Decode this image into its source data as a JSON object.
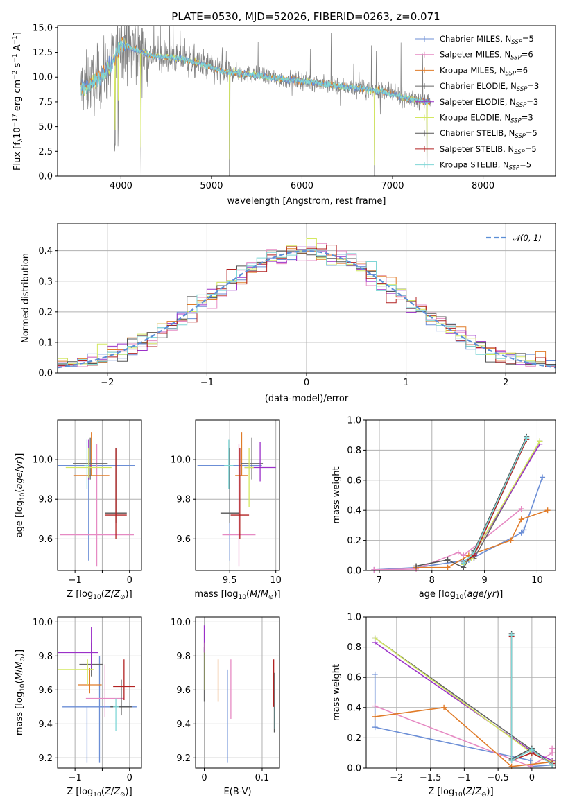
{
  "figure": {
    "title": "PLATE=0530, MJD=52026, FIBERID=0263, z=0.071"
  },
  "colors": {
    "Chabrier MILES": "#6b8ed6",
    "Salpeter MILES": "#e68ac3",
    "Kroupa MILES": "#e07b28",
    "Chabrier ELODIE": "#666666",
    "Salpeter ELODIE": "#9b30c8",
    "Kroupa ELODIE": "#d4e860",
    "Chabrier STELIB": "#555555",
    "Salpeter STELIB": "#b22222",
    "Kroupa STELIB": "#7fd6d6",
    "data": "#808080",
    "normal": "#5b8ed6"
  },
  "chart_data": [
    {
      "id": "spectrum",
      "type": "line",
      "title": "PLATE=0530, MJD=52026, FIBERID=0263, z=0.071",
      "xlabel": "wavelength [Angstrom, rest frame]",
      "ylabel": "Flux [f_λ 10^-17 erg cm^-2 s^-1 A^-1]",
      "xlim": [
        3300,
        8800
      ],
      "ylim": [
        0,
        15.2
      ],
      "xticks": [
        4000,
        5000,
        6000,
        7000,
        8000
      ],
      "yticks": [
        0.0,
        2.5,
        5.0,
        7.5,
        10.0,
        12.5,
        15.0
      ],
      "legend_position": "top-right",
      "legend": [
        {
          "name": "Chabrier MILES",
          "nssp": "5"
        },
        {
          "name": "Salpeter MILES",
          "nssp": "6"
        },
        {
          "name": "Kroupa MILES",
          "nssp": "6"
        },
        {
          "name": "Chabrier ELODIE",
          "nssp": "3"
        },
        {
          "name": "Salpeter ELODIE",
          "nssp": "3"
        },
        {
          "name": "Kroupa ELODIE",
          "nssp": "3"
        },
        {
          "name": "Chabrier STELIB",
          "nssp": "5"
        },
        {
          "name": "Salpeter STELIB",
          "nssp": "5"
        },
        {
          "name": "Kroupa STELIB",
          "nssp": "5"
        }
      ],
      "continuum": {
        "x": [
          3550,
          3700,
          3900,
          4000,
          4100,
          4300,
          4500,
          4700,
          4900,
          5100,
          5300,
          5500,
          5700,
          5900,
          6100,
          6300,
          6500,
          6700,
          6900,
          7100,
          7300,
          7400
        ],
        "y": [
          9.0,
          9.5,
          11.2,
          13.5,
          13.0,
          12.2,
          12.0,
          11.8,
          11.3,
          10.6,
          10.4,
          10.2,
          9.9,
          9.7,
          9.5,
          9.2,
          9.0,
          8.8,
          8.5,
          8.0,
          7.6,
          7.5
        ]
      },
      "absorption_features": [
        {
          "x": 3934,
          "depth": 9.5
        },
        {
          "x": 3969,
          "depth": 7.0
        },
        {
          "x": 4220,
          "depth": 12.0
        },
        {
          "x": 5200,
          "depth": 11.0
        },
        {
          "x": 6800,
          "depth": 9.5
        },
        {
          "x": 7380,
          "depth": 7.0
        }
      ],
      "data_range": [
        3550,
        7420
      ]
    },
    {
      "id": "residuals",
      "type": "bar",
      "xlabel": "(data-model)/error",
      "ylabel": "Normed distribution",
      "xlim": [
        -2.5,
        2.5
      ],
      "ylim": [
        0,
        0.49
      ],
      "xticks": [
        -2,
        -1,
        0,
        1,
        2
      ],
      "yticks": [
        0.0,
        0.1,
        0.2,
        0.3,
        0.4
      ],
      "legend": [
        "𝒩(0, 1)"
      ],
      "legend_position": "top-right",
      "bin_width": 0.1,
      "bin_start": -2.5,
      "bin_count": 50
    },
    {
      "id": "age_vs_Z",
      "type": "scatter",
      "xlabel": "Z [log10(Z/Z⊙)]",
      "ylabel": "age  [log10(age/yr)]",
      "xlim": [
        -1.32,
        0.22
      ],
      "ylim": [
        9.44,
        10.2
      ],
      "xticks": [
        -1,
        -0.5,
        0
      ],
      "xticklabels": [
        "−1",
        "",
        "0"
      ],
      "yticks": [
        9.6,
        9.8,
        10.0
      ],
      "points": [
        {
          "model": "Chabrier MILES",
          "x": -0.75,
          "xerr": 0.85,
          "y": 9.97,
          "yerr": [
            0.48,
            0.0
          ]
        },
        {
          "model": "Salpeter MILES",
          "x": -0.6,
          "xerr": 0.68,
          "y": 9.62,
          "yerr": [
            0.16,
            0.46
          ]
        },
        {
          "model": "Kroupa MILES",
          "x": -0.7,
          "xerr": 0.33,
          "y": 9.92,
          "yerr": [
            0.0,
            0.22
          ]
        },
        {
          "model": "Chabrier ELODIE",
          "x": -0.72,
          "xerr": 0.32,
          "y": 9.98,
          "yerr": [
            0.08,
            0.13
          ]
        },
        {
          "model": "Salpeter ELODIE",
          "x": -0.75,
          "xerr": 0.05,
          "y": 9.97,
          "yerr": [
            0.07,
            0.13
          ]
        },
        {
          "model": "Kroupa ELODIE",
          "x": -0.75,
          "xerr": 0.42,
          "y": 9.96,
          "yerr": [
            0.05,
            0.1
          ]
        },
        {
          "model": "Chabrier STELIB",
          "x": -0.25,
          "xerr": 0.2,
          "y": 9.73,
          "yerr": [
            0.05,
            0.33
          ]
        },
        {
          "model": "Salpeter STELIB",
          "x": -0.25,
          "xerr": 0.2,
          "y": 9.72,
          "yerr": [
            0.12,
            0.34
          ]
        },
        {
          "model": "Kroupa STELIB",
          "x": -0.78,
          "xerr": 0.05,
          "y": 9.97,
          "yerr": [
            0.12,
            0.13
          ]
        }
      ]
    },
    {
      "id": "age_vs_mass",
      "type": "scatter",
      "xlabel": "mass [log10(M/M⊙)]",
      "ylabel": "",
      "xlim": [
        9.13,
        10.04
      ],
      "ylim": [
        9.44,
        10.2
      ],
      "xticks": [
        9.5,
        10.0
      ],
      "yticks": [
        9.6,
        9.8,
        10.0
      ],
      "points": [
        {
          "model": "Chabrier MILES",
          "x": 9.5,
          "xerr": 0.35,
          "y": 9.97,
          "yerr": [
            0.48,
            0.0
          ]
        },
        {
          "model": "Salpeter MILES",
          "x": 9.6,
          "xerr": 0.18,
          "y": 9.62,
          "yerr": [
            0.16,
            0.46
          ]
        },
        {
          "model": "Kroupa MILES",
          "x": 9.63,
          "xerr": 0.07,
          "y": 9.92,
          "yerr": [
            0.0,
            0.22
          ]
        },
        {
          "model": "Chabrier ELODIE",
          "x": 9.74,
          "xerr": 0.12,
          "y": 9.98,
          "yerr": [
            0.08,
            0.13
          ]
        },
        {
          "model": "Salpeter ELODIE",
          "x": 9.83,
          "xerr": 0.17,
          "y": 9.96,
          "yerr": [
            0.07,
            0.13
          ]
        },
        {
          "model": "Kroupa ELODIE",
          "x": 9.71,
          "xerr": 0.05,
          "y": 9.96,
          "yerr": [
            0.2,
            0.1
          ]
        },
        {
          "model": "Chabrier STELIB",
          "x": 9.5,
          "xerr": 0.1,
          "y": 9.73,
          "yerr": [
            0.05,
            0.33
          ]
        },
        {
          "model": "Salpeter STELIB",
          "x": 9.61,
          "xerr": 0.1,
          "y": 9.72,
          "yerr": [
            0.12,
            0.34
          ]
        },
        {
          "model": "Kroupa STELIB",
          "x": 9.49,
          "xerr": 0.05,
          "y": 9.97,
          "yerr": [
            0.12,
            0.13
          ]
        }
      ]
    },
    {
      "id": "massweight_vs_age",
      "type": "line",
      "xlabel": "age  [log10(age/yr)]",
      "ylabel": "mass weight",
      "xlim": [
        6.75,
        10.35
      ],
      "ylim": [
        0,
        1.0
      ],
      "xticks": [
        7,
        8,
        9,
        10
      ],
      "yticks": [
        0.0,
        0.2,
        0.4,
        0.6,
        0.8,
        1.0
      ],
      "series": [
        {
          "model": "Chabrier MILES",
          "x": [
            6.9,
            7.7,
            8.7,
            9.7,
            9.75,
            10.1
          ],
          "y": [
            0.005,
            0.02,
            0.07,
            0.25,
            0.27,
            0.62
          ]
        },
        {
          "model": "Salpeter MILES",
          "x": [
            6.9,
            7.7,
            8.5,
            8.6,
            9.7
          ],
          "y": [
            0.005,
            0.01,
            0.12,
            0.1,
            0.41
          ]
        },
        {
          "model": "Kroupa MILES",
          "x": [
            7.7,
            8.3,
            8.7,
            9.5,
            9.7,
            10.2
          ],
          "y": [
            0.02,
            0.02,
            0.1,
            0.2,
            0.34,
            0.4
          ]
        },
        {
          "model": "Chabrier ELODIE",
          "x": [
            8.6,
            8.8,
            10.05
          ],
          "y": [
            0.06,
            0.08,
            0.86
          ]
        },
        {
          "model": "Salpeter ELODIE",
          "x": [
            8.6,
            8.8,
            10.05
          ],
          "y": [
            0.05,
            0.11,
            0.84
          ]
        },
        {
          "model": "Kroupa ELODIE",
          "x": [
            8.6,
            8.75,
            10.05
          ],
          "y": [
            0.04,
            0.08,
            0.86
          ]
        },
        {
          "model": "Chabrier STELIB",
          "x": [
            7.7,
            8.3,
            8.6,
            8.8,
            9.8
          ],
          "y": [
            0.03,
            0.07,
            0.02,
            0.13,
            0.89
          ]
        },
        {
          "model": "Salpeter STELIB",
          "x": [
            8.6,
            8.8,
            9.8
          ],
          "y": [
            0.05,
            0.1,
            0.87
          ]
        },
        {
          "model": "Kroupa STELIB",
          "x": [
            8.6,
            8.8,
            9.8
          ],
          "y": [
            0.05,
            0.12,
            0.88
          ]
        }
      ]
    },
    {
      "id": "mass_vs_Z",
      "type": "scatter",
      "xlabel": "Z [log10(Z/Z⊙)]",
      "ylabel": "mass [log10(M/M⊙)]",
      "xlim": [
        -1.32,
        0.22
      ],
      "ylim": [
        9.14,
        10.03
      ],
      "xticks": [
        -1,
        -0.5,
        0
      ],
      "xticklabels": [
        "−1",
        "",
        "0"
      ],
      "yticks": [
        9.2,
        9.4,
        9.6,
        9.8,
        10.0
      ],
      "points": [
        {
          "model": "Chabrier MILES",
          "x": -0.55,
          "xerr": 0.68,
          "y": 9.5,
          "yerr": [
            0.33,
            0.3
          ]
        },
        {
          "model": "Salpeter MILES",
          "x": -0.45,
          "xerr": 0.35,
          "y": 9.55,
          "yerr": [
            0.11,
            0.2
          ]
        },
        {
          "model": "Kroupa MILES",
          "x": -0.73,
          "xerr": 0.22,
          "y": 9.63,
          "yerr": [
            0.05,
            0.1
          ]
        },
        {
          "model": "Chabrier ELODIE",
          "x": -0.7,
          "xerr": 0.22,
          "y": 9.75,
          "yerr": [
            0.07,
            0.13
          ]
        },
        {
          "model": "Salpeter ELODIE",
          "x": -0.95,
          "xerr": 0.37,
          "y": 9.82,
          "yerr": [
            0.0,
            0.0
          ]
        },
        {
          "model": "Kroupa ELODIE",
          "x": -1.0,
          "xerr": 0.35,
          "y": 9.72,
          "yerr": [
            0.0,
            0.0
          ]
        },
        {
          "model": "Chabrier STELIB",
          "x": -0.15,
          "xerr": 0.2,
          "y": 9.5,
          "yerr": [
            0.05,
            0.16
          ]
        },
        {
          "model": "Salpeter STELIB",
          "x": -0.1,
          "xerr": 0.2,
          "y": 9.62,
          "yerr": [
            0.08,
            0.16
          ]
        },
        {
          "model": "Kroupa STELIB",
          "x": -0.25,
          "xerr": 0.05,
          "y": 9.5,
          "yerr": [
            0.14,
            0.05
          ]
        }
      ],
      "vertical_segments": [
        {
          "model": "Salpeter ELODIE",
          "x": -0.7,
          "y0": 9.73,
          "y1": 9.97
        },
        {
          "model": "Kroupa ELODIE",
          "x": -0.77,
          "y0": 9.63,
          "y1": 9.78
        },
        {
          "model": "Chabrier MILES",
          "x": -0.78,
          "y0": 9.17,
          "y1": 9.5
        }
      ]
    },
    {
      "id": "mass_vs_EBV",
      "type": "scatter",
      "xlabel": "E(B-V)",
      "ylabel": "",
      "xlim": [
        -0.015,
        0.13
      ],
      "ylim": [
        9.14,
        10.03
      ],
      "xticks": [
        0.0,
        0.1
      ],
      "yticks": [
        9.2,
        9.4,
        9.6,
        9.8,
        10.0
      ],
      "points": [
        {
          "model": "Chabrier MILES",
          "x": 0.04,
          "y0": 9.17,
          "y1": 9.72
        },
        {
          "model": "Salpeter MILES",
          "x": 0.046,
          "y0": 9.43,
          "y1": 9.78
        },
        {
          "model": "Kroupa MILES",
          "x": 0.024,
          "y0": 9.53,
          "y1": 9.78
        },
        {
          "model": "Chabrier ELODIE",
          "x": 0.0,
          "y0": 9.53,
          "y1": 9.85
        },
        {
          "model": "Salpeter ELODIE",
          "x": 0.0,
          "y0": 9.82,
          "y1": 9.98
        },
        {
          "model": "Kroupa ELODIE",
          "x": 0.001,
          "y0": 9.6,
          "y1": 9.88
        },
        {
          "model": "Chabrier STELIB",
          "x": 0.121,
          "y0": 9.35,
          "y1": 9.7
        },
        {
          "model": "Salpeter STELIB",
          "x": 0.12,
          "y0": 9.5,
          "y1": 9.78
        },
        {
          "model": "Kroupa STELIB",
          "x": 0.122,
          "y0": 9.37,
          "y1": 9.7
        }
      ]
    },
    {
      "id": "massweight_vs_Z",
      "type": "line",
      "xlabel": "Z [log10(Z/Z⊙)]",
      "ylabel": "mass weight",
      "xlim": [
        -2.45,
        0.35
      ],
      "ylim": [
        0,
        1.0
      ],
      "xticks": [
        -2.0,
        -1.5,
        -1.0,
        -0.5,
        0.0
      ],
      "yticks": [
        0.0,
        0.2,
        0.4,
        0.6,
        0.8,
        1.0
      ],
      "series": [
        {
          "model": "Chabrier MILES",
          "x": [
            -2.32,
            -2.32,
            -0.02,
            -0.02,
            0.3
          ],
          "y": [
            0.62,
            0.27,
            0.05,
            0.01,
            0.02
          ]
        },
        {
          "model": "Salpeter MILES",
          "x": [
            -2.32,
            -0.02,
            0.3,
            0.3
          ],
          "y": [
            0.41,
            0.01,
            0.1,
            0.13
          ]
        },
        {
          "model": "Kroupa MILES",
          "x": [
            -2.32,
            -1.3,
            -0.3,
            0.3
          ],
          "y": [
            0.34,
            0.4,
            0.01,
            0.04
          ]
        },
        {
          "model": "Chabrier ELODIE",
          "x": [
            -2.32,
            0.0,
            0.3
          ],
          "y": [
            0.86,
            0.12,
            0.02
          ]
        },
        {
          "model": "Salpeter ELODIE",
          "x": [
            -2.32,
            0.0,
            0.3
          ],
          "y": [
            0.83,
            0.11,
            0.05
          ]
        },
        {
          "model": "Kroupa ELODIE",
          "x": [
            -2.32,
            0.0,
            0.3
          ],
          "y": [
            0.86,
            0.1,
            0.04
          ]
        },
        {
          "model": "Chabrier STELIB",
          "x": [
            -0.3,
            -0.3,
            0.0,
            0.3
          ],
          "y": [
            0.89,
            0.06,
            0.13,
            0.02
          ]
        },
        {
          "model": "Salpeter STELIB",
          "x": [
            -0.3,
            -0.3,
            0.0,
            0.3
          ],
          "y": [
            0.87,
            0.05,
            0.1,
            0.03
          ]
        },
        {
          "model": "Kroupa STELIB",
          "x": [
            -0.3,
            -0.3,
            0.0,
            0.3
          ],
          "y": [
            0.88,
            0.05,
            0.12,
            0.02
          ]
        }
      ]
    }
  ]
}
